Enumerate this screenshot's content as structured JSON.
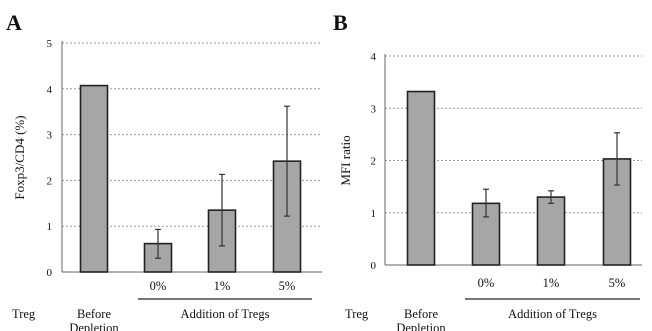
{
  "chart_data": [
    {
      "panel_label": "A",
      "type": "bar",
      "categories": [
        "Before Depletion",
        "0%",
        "1%",
        "5%"
      ],
      "values": [
        4.07,
        0.62,
        1.35,
        2.42
      ],
      "errors": [
        null,
        [
          0.3,
          0.93
        ],
        [
          0.57,
          2.13
        ],
        [
          1.22,
          3.62
        ]
      ],
      "ylabel": "Foxp3/CD4 (%)",
      "xlabel": "",
      "ylim": [
        0,
        5
      ],
      "yticks": [
        "0",
        "1",
        "2",
        "3",
        "4",
        "5"
      ],
      "row_label": "Treg",
      "group_label": "Addition of Tregs",
      "grid": true
    },
    {
      "panel_label": "B",
      "type": "bar",
      "categories": [
        "Before Depletion",
        "0%",
        "1%",
        "5%"
      ],
      "values": [
        3.32,
        1.18,
        1.3,
        2.03
      ],
      "errors": [
        null,
        [
          0.92,
          1.45
        ],
        [
          1.18,
          1.42
        ],
        [
          1.53,
          2.53
        ]
      ],
      "ylabel": "MFI ratio",
      "xlabel": "",
      "ylim": [
        0,
        4
      ],
      "yticks": [
        "0",
        "1",
        "2",
        "3",
        "4"
      ],
      "row_label": "Treg",
      "group_label": "Addition of Tregs",
      "grid": true
    }
  ],
  "colors": {
    "bar_fill": "#a6a6a6",
    "bar_stroke": "#222222",
    "grid": "#999999",
    "axis": "#666666",
    "text": "#111111"
  }
}
